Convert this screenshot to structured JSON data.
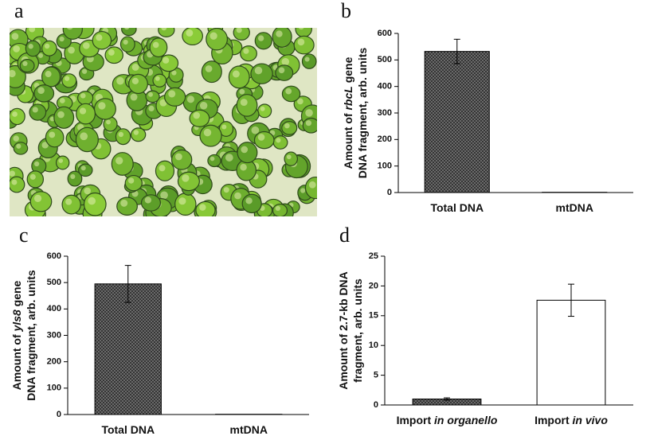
{
  "panel_labels": [
    "a",
    "b",
    "c",
    "d"
  ],
  "chart_data": [
    {
      "type": "bar",
      "ylabel": [
        [
          {
            "text": "Amount of "
          },
          {
            "text": "rbcL",
            "style": "italic"
          },
          {
            "text": " gene"
          }
        ],
        [
          {
            "text": "DNA fragment, arb. units"
          }
        ]
      ],
      "categories": [
        [
          {
            "text": "Total DNA"
          }
        ],
        [
          {
            "text": "mtDNA"
          }
        ]
      ],
      "values": [
        532,
        1
      ],
      "errors": [
        46,
        null
      ],
      "bar_style": [
        "hatched",
        "hatched"
      ],
      "ylim": [
        0,
        600
      ],
      "yticks": [
        0,
        100,
        200,
        300,
        400,
        500,
        600
      ]
    },
    {
      "type": "bar",
      "ylabel": [
        [
          {
            "text": "Amount of "
          },
          {
            "text": "yls8",
            "style": "italic"
          },
          {
            "text": " gene"
          }
        ],
        [
          {
            "text": "DNA fragment, arb. units"
          }
        ]
      ],
      "categories": [
        [
          {
            "text": "Total DNA"
          }
        ],
        [
          {
            "text": "mtDNA"
          }
        ]
      ],
      "values": [
        495,
        1
      ],
      "errors": [
        70,
        null
      ],
      "bar_style": [
        "hatched",
        "hatched"
      ],
      "ylim": [
        0,
        600
      ],
      "yticks": [
        0,
        100,
        200,
        300,
        400,
        500,
        600
      ]
    },
    {
      "type": "bar",
      "ylabel": [
        [
          {
            "text": "Amount of 2.7-kb DNA"
          }
        ],
        [
          {
            "text": "fragment, arb. units"
          }
        ]
      ],
      "categories": [
        [
          {
            "text": "Import "
          },
          {
            "text": "in organello",
            "style": "italic"
          }
        ],
        [
          {
            "text": "Import "
          },
          {
            "text": "in vivo",
            "style": "italic"
          }
        ]
      ],
      "values": [
        1.0,
        17.6
      ],
      "errors": [
        0.2,
        2.7
      ],
      "bar_style": [
        "hatched",
        "white"
      ],
      "ylim": [
        0,
        25
      ],
      "yticks": [
        0,
        5,
        10,
        15,
        20,
        25
      ]
    }
  ]
}
